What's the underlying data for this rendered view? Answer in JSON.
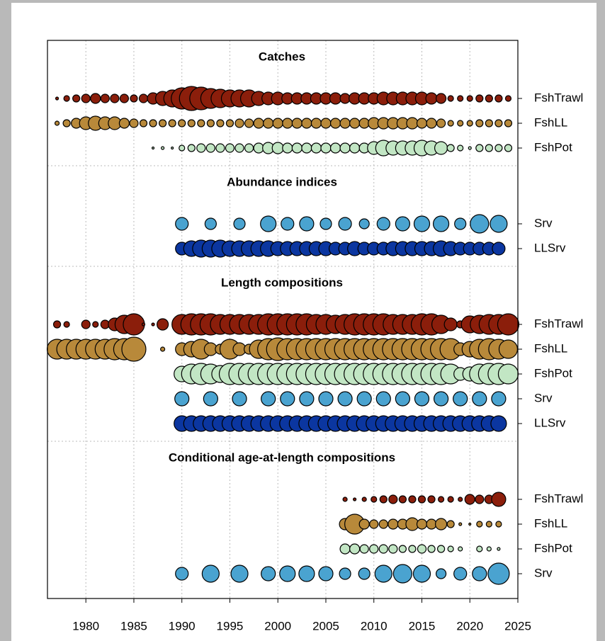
{
  "chart_data": {
    "type": "bubble",
    "xlim": [
      1976,
      2025
    ],
    "xticks": [
      1980,
      1985,
      1990,
      1995,
      2000,
      2005,
      2010,
      2015,
      2020,
      2025
    ],
    "grid": true,
    "sections": [
      {
        "title": "Catches",
        "series": [
          {
            "name": "FshTrawl",
            "color": "#8b1e0b",
            "x": [
              1977,
              1978,
              1979,
              1980,
              1981,
              1982,
              1983,
              1984,
              1985,
              1986,
              1987,
              1988,
              1989,
              1990,
              1991,
              1992,
              1993,
              1994,
              1995,
              1996,
              1997,
              1998,
              1999,
              2000,
              2001,
              2002,
              2003,
              2004,
              2005,
              2006,
              2007,
              2008,
              2009,
              2010,
              2011,
              2012,
              2013,
              2014,
              2015,
              2016,
              2017,
              2018,
              2019,
              2020,
              2021,
              2022,
              2023,
              2024
            ],
            "values": [
              2,
              4,
              5,
              6,
              7,
              6,
              6,
              6,
              5,
              6,
              8,
              10,
              12,
              15,
              17,
              16,
              14,
              13,
              12,
              12,
              12,
              10,
              9,
              9,
              8,
              8,
              8,
              8,
              8,
              8,
              7,
              8,
              8,
              8,
              9,
              9,
              9,
              9,
              9,
              8,
              7,
              4,
              4,
              4,
              5,
              5,
              5,
              4
            ]
          },
          {
            "name": "FshLL",
            "color": "#b8893a",
            "x": [
              1977,
              1978,
              1979,
              1980,
              1981,
              1982,
              1983,
              1984,
              1985,
              1986,
              1987,
              1988,
              1989,
              1990,
              1991,
              1992,
              1993,
              1994,
              1995,
              1996,
              1997,
              1998,
              1999,
              2000,
              2001,
              2002,
              2003,
              2004,
              2005,
              2006,
              2007,
              2008,
              2009,
              2010,
              2011,
              2012,
              2013,
              2014,
              2015,
              2016,
              2017,
              2018,
              2019,
              2020,
              2021,
              2022,
              2023,
              2024
            ],
            "values": [
              3,
              5,
              7,
              9,
              10,
              9,
              9,
              7,
              6,
              5,
              5,
              5,
              5,
              5,
              5,
              5,
              5,
              5,
              5,
              6,
              6,
              7,
              7,
              7,
              7,
              7,
              7,
              7,
              7,
              7,
              7,
              7,
              7,
              8,
              8,
              8,
              8,
              8,
              7,
              7,
              6,
              4,
              4,
              4,
              5,
              5,
              5,
              5
            ]
          },
          {
            "name": "FshPot",
            "color": "#c2e6c4",
            "x": [
              1987,
              1988,
              1989,
              1990,
              1991,
              1992,
              1993,
              1994,
              1995,
              1996,
              1997,
              1998,
              1999,
              2000,
              2001,
              2002,
              2003,
              2004,
              2005,
              2006,
              2007,
              2008,
              2009,
              2010,
              2011,
              2012,
              2013,
              2014,
              2015,
              2016,
              2017,
              2018,
              2019,
              2020,
              2021,
              2022,
              2023,
              2024
            ],
            "values": [
              1.5,
              2,
              1.5,
              4,
              5,
              6,
              6,
              6,
              6,
              6,
              6,
              7,
              8,
              8,
              7,
              7,
              7,
              7,
              7,
              7,
              7,
              7,
              7,
              9,
              11,
              10,
              10,
              10,
              11,
              10,
              9,
              5,
              4,
              2,
              5,
              5,
              5,
              5
            ]
          }
        ]
      },
      {
        "title": "Abundance indices",
        "series": [
          {
            "name": "Srv",
            "color": "#4aa3d0",
            "x": [
              1990,
              1993,
              1996,
              1999,
              2001,
              2003,
              2005,
              2007,
              2009,
              2011,
              2013,
              2015,
              2017,
              2019,
              2021,
              2023
            ],
            "values": [
              9,
              8,
              8,
              11,
              9,
              10,
              8,
              9,
              7,
              9,
              10,
              11,
              11,
              8,
              13,
              12
            ]
          },
          {
            "name": "LLSrv",
            "color": "#0b36a0",
            "x": [
              1990,
              1991,
              1992,
              1993,
              1994,
              1995,
              1996,
              1997,
              1998,
              1999,
              2000,
              2001,
              2002,
              2003,
              2004,
              2005,
              2006,
              2007,
              2008,
              2009,
              2010,
              2011,
              2012,
              2013,
              2014,
              2015,
              2016,
              2017,
              2018,
              2019,
              2020,
              2021,
              2022,
              2023
            ],
            "values": [
              9,
              11,
              12,
              12,
              12,
              11,
              11,
              11,
              11,
              11,
              10,
              10,
              10,
              10,
              10,
              10,
              9,
              9,
              10,
              9,
              9,
              9,
              10,
              10,
              10,
              10,
              10,
              11,
              10,
              9,
              9,
              9,
              9,
              9
            ]
          }
        ]
      },
      {
        "title": "Length compositions",
        "series": [
          {
            "name": "FshTrawl",
            "color": "#8b1e0b",
            "x": [
              1977,
              1978,
              1980,
              1981,
              1982,
              1983,
              1984,
              1985,
              1986,
              1987,
              1988,
              1990,
              1991,
              1992,
              1993,
              1994,
              1995,
              1996,
              1997,
              1998,
              1999,
              2000,
              2001,
              2002,
              2003,
              2004,
              2005,
              2006,
              2007,
              2008,
              2009,
              2010,
              2011,
              2012,
              2013,
              2014,
              2015,
              2016,
              2017,
              2018,
              2019,
              2020,
              2021,
              2022,
              2023,
              2024
            ],
            "values": [
              5,
              4,
              6,
              4,
              6,
              9,
              13,
              15,
              2,
              2,
              8,
              14,
              15,
              15,
              15,
              14,
              14,
              14,
              14,
              14,
              15,
              15,
              15,
              15,
              15,
              14,
              14,
              13,
              14,
              15,
              15,
              15,
              15,
              14,
              14,
              14,
              15,
              15,
              13,
              9,
              5,
              12,
              13,
              14,
              14,
              15
            ]
          },
          {
            "name": "FshLL",
            "color": "#b8893a",
            "x": [
              1977,
              1978,
              1979,
              1980,
              1981,
              1982,
              1983,
              1984,
              1985,
              1988,
              1990,
              1991,
              1992,
              1993,
              1994,
              1995,
              1996,
              1997,
              1998,
              1999,
              2000,
              2001,
              2002,
              2003,
              2004,
              2005,
              2006,
              2007,
              2008,
              2009,
              2010,
              2011,
              2012,
              2013,
              2014,
              2015,
              2016,
              2017,
              2018,
              2019,
              2020,
              2021,
              2022,
              2023,
              2024
            ],
            "values": [
              14,
              14,
              14,
              14,
              14,
              14,
              15,
              15,
              17,
              3,
              9,
              11,
              14,
              9,
              7,
              14,
              9,
              7,
              13,
              15,
              16,
              15,
              15,
              15,
              15,
              15,
              15,
              15,
              15,
              15,
              15,
              15,
              15,
              15,
              15,
              15,
              15,
              15,
              15,
              9,
              11,
              14,
              15,
              14,
              13
            ]
          },
          {
            "name": "FshPot",
            "color": "#c2e6c4",
            "x": [
              1990,
              1991,
              1992,
              1993,
              1994,
              1995,
              1996,
              1997,
              1998,
              1999,
              2000,
              2001,
              2002,
              2003,
              2004,
              2005,
              2006,
              2007,
              2008,
              2009,
              2010,
              2011,
              2012,
              2013,
              2014,
              2015,
              2016,
              2017,
              2018,
              2019,
              2020,
              2021,
              2022,
              2023,
              2024
            ],
            "values": [
              11,
              14,
              15,
              14,
              12,
              15,
              15,
              15,
              15,
              15,
              15,
              15,
              15,
              15,
              15,
              15,
              15,
              15,
              15,
              15,
              15,
              15,
              15,
              15,
              15,
              15,
              15,
              15,
              14,
              9,
              10,
              14,
              15,
              15,
              14
            ]
          },
          {
            "name": "Srv",
            "color": "#4aa3d0",
            "x": [
              1990,
              1993,
              1996,
              1999,
              2001,
              2003,
              2005,
              2007,
              2009,
              2011,
              2013,
              2015,
              2017,
              2019,
              2021,
              2023
            ],
            "values": [
              10,
              10,
              10,
              10,
              10,
              10,
              10,
              10,
              10,
              10,
              10,
              10,
              10,
              10,
              10,
              10
            ]
          },
          {
            "name": "LLSrv",
            "color": "#0b36a0",
            "x": [
              1990,
              1991,
              1992,
              1993,
              1994,
              1995,
              1996,
              1997,
              1998,
              1999,
              2000,
              2001,
              2002,
              2003,
              2004,
              2005,
              2006,
              2007,
              2008,
              2009,
              2010,
              2011,
              2012,
              2013,
              2014,
              2015,
              2016,
              2017,
              2018,
              2019,
              2020,
              2021,
              2022,
              2023
            ],
            "values": [
              11,
              11,
              11,
              11,
              11,
              11,
              11,
              11,
              11,
              11,
              11,
              11,
              11,
              11,
              11,
              11,
              11,
              11,
              11,
              11,
              11,
              11,
              11,
              11,
              11,
              11,
              11,
              11,
              11,
              11,
              11,
              11,
              11,
              11
            ]
          }
        ]
      },
      {
        "title": "Conditional age-at-length compositions",
        "series": [
          {
            "name": "FshTrawl",
            "color": "#8b1e0b",
            "x": [
              2007,
              2008,
              2009,
              2010,
              2011,
              2012,
              2013,
              2014,
              2015,
              2016,
              2017,
              2018,
              2019,
              2020,
              2021,
              2022,
              2023
            ],
            "values": [
              3,
              2,
              3,
              4,
              5,
              6,
              5,
              5,
              5,
              5,
              4,
              4,
              3,
              7,
              6,
              6,
              10
            ]
          },
          {
            "name": "FshLL",
            "color": "#b8893a",
            "x": [
              2007,
              2008,
              2009,
              2010,
              2011,
              2012,
              2013,
              2014,
              2015,
              2016,
              2017,
              2018,
              2019,
              2020,
              2021,
              2022,
              2023
            ],
            "values": [
              8,
              14,
              7,
              6,
              6,
              7,
              7,
              9,
              7,
              7,
              8,
              5,
              2,
              1.5,
              4,
              4,
              4
            ]
          },
          {
            "name": "FshPot",
            "color": "#c2e6c4",
            "x": [
              2007,
              2008,
              2009,
              2010,
              2011,
              2012,
              2013,
              2014,
              2015,
              2016,
              2017,
              2018,
              2019,
              2021,
              2022,
              2023
            ],
            "values": [
              7,
              7,
              6,
              6,
              6,
              6,
              5,
              5,
              6,
              5,
              5,
              4,
              3,
              4,
              3,
              2
            ]
          },
          {
            "name": "Srv",
            "color": "#4aa3d0",
            "x": [
              1990,
              1993,
              1996,
              1999,
              2001,
              2003,
              2005,
              2007,
              2009,
              2011,
              2013,
              2015,
              2017,
              2019,
              2021,
              2023
            ],
            "values": [
              9,
              12,
              12,
              10,
              11,
              11,
              10,
              8,
              8,
              12,
              13,
              12,
              7,
              9,
              10,
              15
            ]
          }
        ]
      }
    ]
  }
}
